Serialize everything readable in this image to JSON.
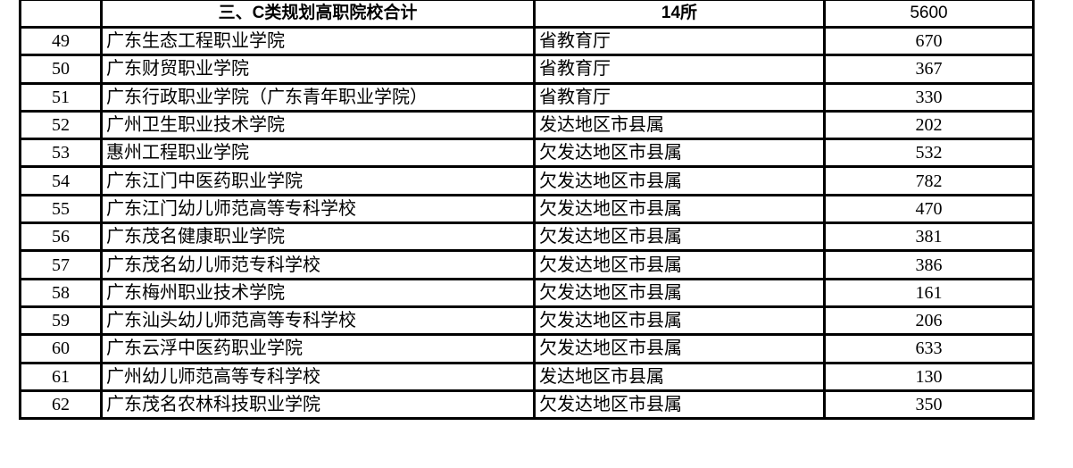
{
  "header": {
    "number": "",
    "title": "三、C类规划高职院校合计",
    "count": "14所",
    "total": "5600"
  },
  "rows": [
    {
      "no": "49",
      "name": "广东生态工程职业学院",
      "dept": "省教育厅",
      "value": "670"
    },
    {
      "no": "50",
      "name": "广东财贸职业学院",
      "dept": "省教育厅",
      "value": "367"
    },
    {
      "no": "51",
      "name": "广东行政职业学院（广东青年职业学院）",
      "dept": "省教育厅",
      "value": "330"
    },
    {
      "no": "52",
      "name": "广州卫生职业技术学院",
      "dept": "发达地区市县属",
      "value": "202"
    },
    {
      "no": "53",
      "name": "惠州工程职业学院",
      "dept": "欠发达地区市县属",
      "value": "532"
    },
    {
      "no": "54",
      "name": "广东江门中医药职业学院",
      "dept": "欠发达地区市县属",
      "value": "782"
    },
    {
      "no": "55",
      "name": "广东江门幼儿师范高等专科学校",
      "dept": "欠发达地区市县属",
      "value": "470"
    },
    {
      "no": "56",
      "name": "广东茂名健康职业学院",
      "dept": "欠发达地区市县属",
      "value": "381"
    },
    {
      "no": "57",
      "name": "广东茂名幼儿师范专科学校",
      "dept": "欠发达地区市县属",
      "value": "386"
    },
    {
      "no": "58",
      "name": "广东梅州职业技术学院",
      "dept": "欠发达地区市县属",
      "value": "161"
    },
    {
      "no": "59",
      "name": "广东汕头幼儿师范高等专科学校",
      "dept": "欠发达地区市县属",
      "value": "206"
    },
    {
      "no": "60",
      "name": "广东云浮中医药职业学院",
      "dept": "欠发达地区市县属",
      "value": "633"
    },
    {
      "no": "61",
      "name": "广州幼儿师范高等专科学校",
      "dept": "发达地区市县属",
      "value": "130"
    },
    {
      "no": "62",
      "name": "广东茂名农林科技职业学院",
      "dept": "欠发达地区市县属",
      "value": "350"
    }
  ]
}
